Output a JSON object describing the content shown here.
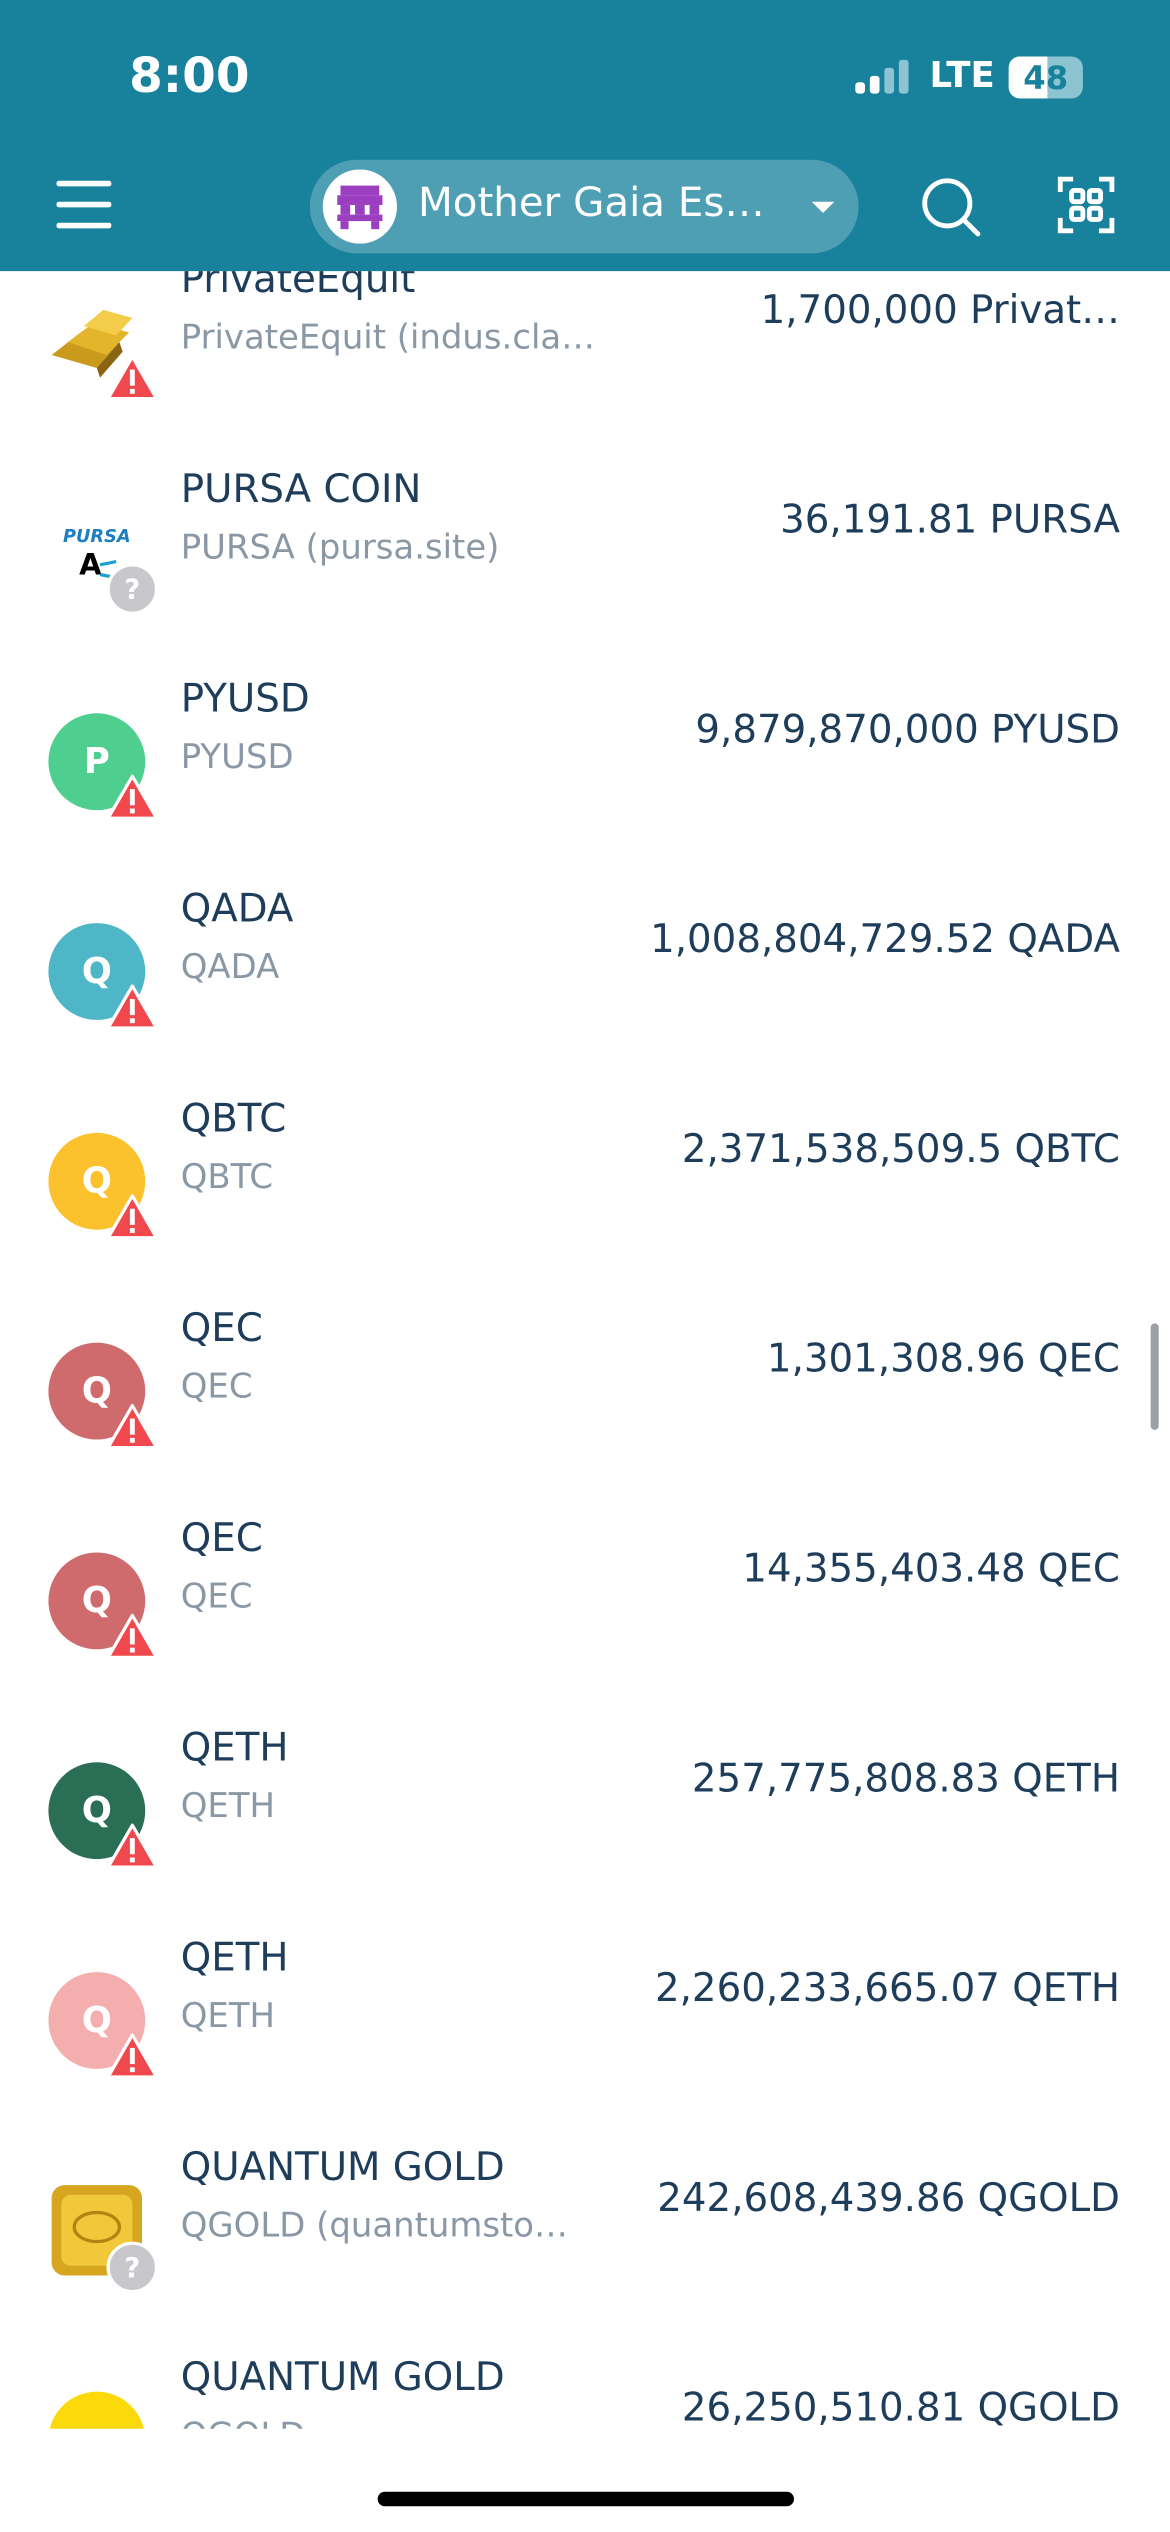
{
  "status_bar": {
    "time": "8:00",
    "network": "LTE",
    "battery": "48"
  },
  "header": {
    "account": "Mother Gaia Es…"
  },
  "assets": [
    {
      "name": "PrivateEquit",
      "subtitle": "PrivateEquit (indus.claims)",
      "amount": "1,700,000 Privat…",
      "icon": "gold",
      "badge": "warning"
    },
    {
      "name": "PURSA COIN",
      "subtitle": "PURSA (pursa.site)",
      "amount": "36,191.81 PURSA",
      "icon": "pursa",
      "badge": "unknown"
    },
    {
      "name": "PYUSD",
      "subtitle": "PYUSD",
      "amount": "9,879,870,000 PYUSD",
      "icon_letter": "P",
      "icon_color": "#4fcf8f",
      "badge": "warning"
    },
    {
      "name": "QADA",
      "subtitle": "QADA",
      "amount": "1,008,804,729.52 QADA",
      "icon_letter": "Q",
      "icon_color": "#4eb6c6",
      "badge": "warning"
    },
    {
      "name": "QBTC",
      "subtitle": "QBTC",
      "amount": "2,371,538,509.5 QBTC",
      "icon_letter": "Q",
      "icon_color": "#fbc22e",
      "badge": "warning"
    },
    {
      "name": "QEC",
      "subtitle": "QEC",
      "amount": "1,301,308.96 QEC",
      "icon_letter": "Q",
      "icon_color": "#cf6b6d",
      "badge": "warning"
    },
    {
      "name": "QEC",
      "subtitle": "QEC",
      "amount": "14,355,403.48 QEC",
      "icon_letter": "Q",
      "icon_color": "#cf6b6d",
      "badge": "warning"
    },
    {
      "name": "QETH",
      "subtitle": "QETH",
      "amount": "257,775,808.83 QETH",
      "icon_letter": "Q",
      "icon_color": "#2a6e55",
      "badge": "warning"
    },
    {
      "name": "QETH",
      "subtitle": "QETH",
      "amount": "2,260,233,665.07 QETH",
      "icon_letter": "Q",
      "icon_color": "#f5aeae",
      "badge": "warning"
    },
    {
      "name": "QUANTUM GOLD",
      "subtitle": "QGOLD (quantumsto…",
      "amount": "242,608,439.86 QGOLD",
      "icon": "goldbar",
      "badge": "unknown"
    },
    {
      "name": "QUANTUM GOLD",
      "subtitle": "QGOLD",
      "amount": "26,250,510.81 QGOLD",
      "icon_letter": "",
      "icon_color": "#fbd90a",
      "badge": "none"
    }
  ]
}
